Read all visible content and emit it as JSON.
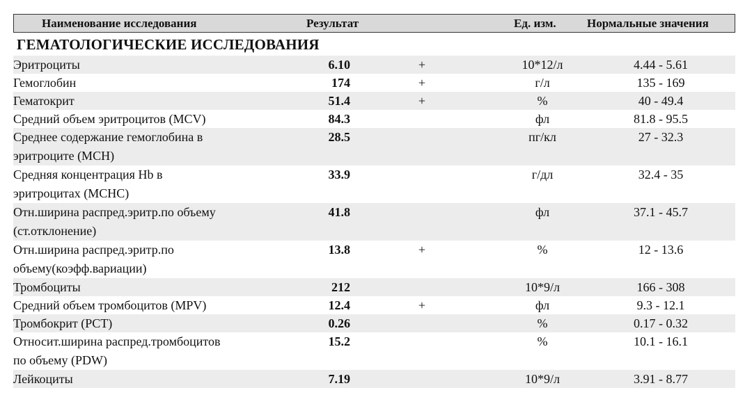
{
  "header": {
    "name": "Наименование исследования",
    "result": "Результат",
    "unit": "Ед. изм.",
    "normal": "Нормальные значения"
  },
  "section_title": "ГЕМАТОЛОГИЧЕСКИЕ ИССЛЕДОВАНИЯ",
  "rows": [
    {
      "name": "Эритроциты",
      "result": "6.10",
      "flag": "+",
      "unit": "10*12/л",
      "normal": "4.44 - 5.61"
    },
    {
      "name": "Гемоглобин",
      "result": "174",
      "flag": "+",
      "unit": "г/л",
      "normal": "135 - 169"
    },
    {
      "name": "Гематокрит",
      "result": "51.4",
      "flag": "+",
      "unit": "%",
      "normal": "40 - 49.4"
    },
    {
      "name": "Средний объем эритроцитов (MCV)",
      "result": "84.3",
      "flag": "",
      "unit": "фл",
      "normal": "81.8 - 95.5"
    },
    {
      "name": "Среднее содержание гемоглобина в эритроците (MCH)",
      "result": "28.5",
      "flag": "",
      "unit": "пг/кл",
      "normal": "27 - 32.3"
    },
    {
      "name": "Средняя концентрация Hb в эритроцитах (MCHC)",
      "result": "33.9",
      "flag": "",
      "unit": "г/дл",
      "normal": "32.4 - 35"
    },
    {
      "name": "Отн.ширина распред.эритр.по объему (ст.отклонение)",
      "result": "41.8",
      "flag": "",
      "unit": "фл",
      "normal": "37.1 - 45.7"
    },
    {
      "name": "Отн.ширина распред.эритр.по объему(коэфф.вариации)",
      "result": "13.8",
      "flag": "+",
      "unit": "%",
      "normal": "12 - 13.6"
    },
    {
      "name": "Тромбоциты",
      "result": "212",
      "flag": "",
      "unit": "10*9/л",
      "normal": "166 - 308"
    },
    {
      "name": "Средний объем тромбоцитов (MPV)",
      "result": "12.4",
      "flag": "+",
      "unit": "фл",
      "normal": "9.3 - 12.1"
    },
    {
      "name": "Тромбокрит (PCT)",
      "result": "0.26",
      "flag": "",
      "unit": "%",
      "normal": "0.17 - 0.32"
    },
    {
      "name": "Относит.ширина распред.тромбоцитов по объему (PDW)",
      "result": "15.2",
      "flag": "",
      "unit": "%",
      "normal": "10.1 - 16.1"
    },
    {
      "name": "Лейкоциты",
      "result": "7.19",
      "flag": "",
      "unit": "10*9/л",
      "normal": "3.91 - 8.77"
    }
  ]
}
